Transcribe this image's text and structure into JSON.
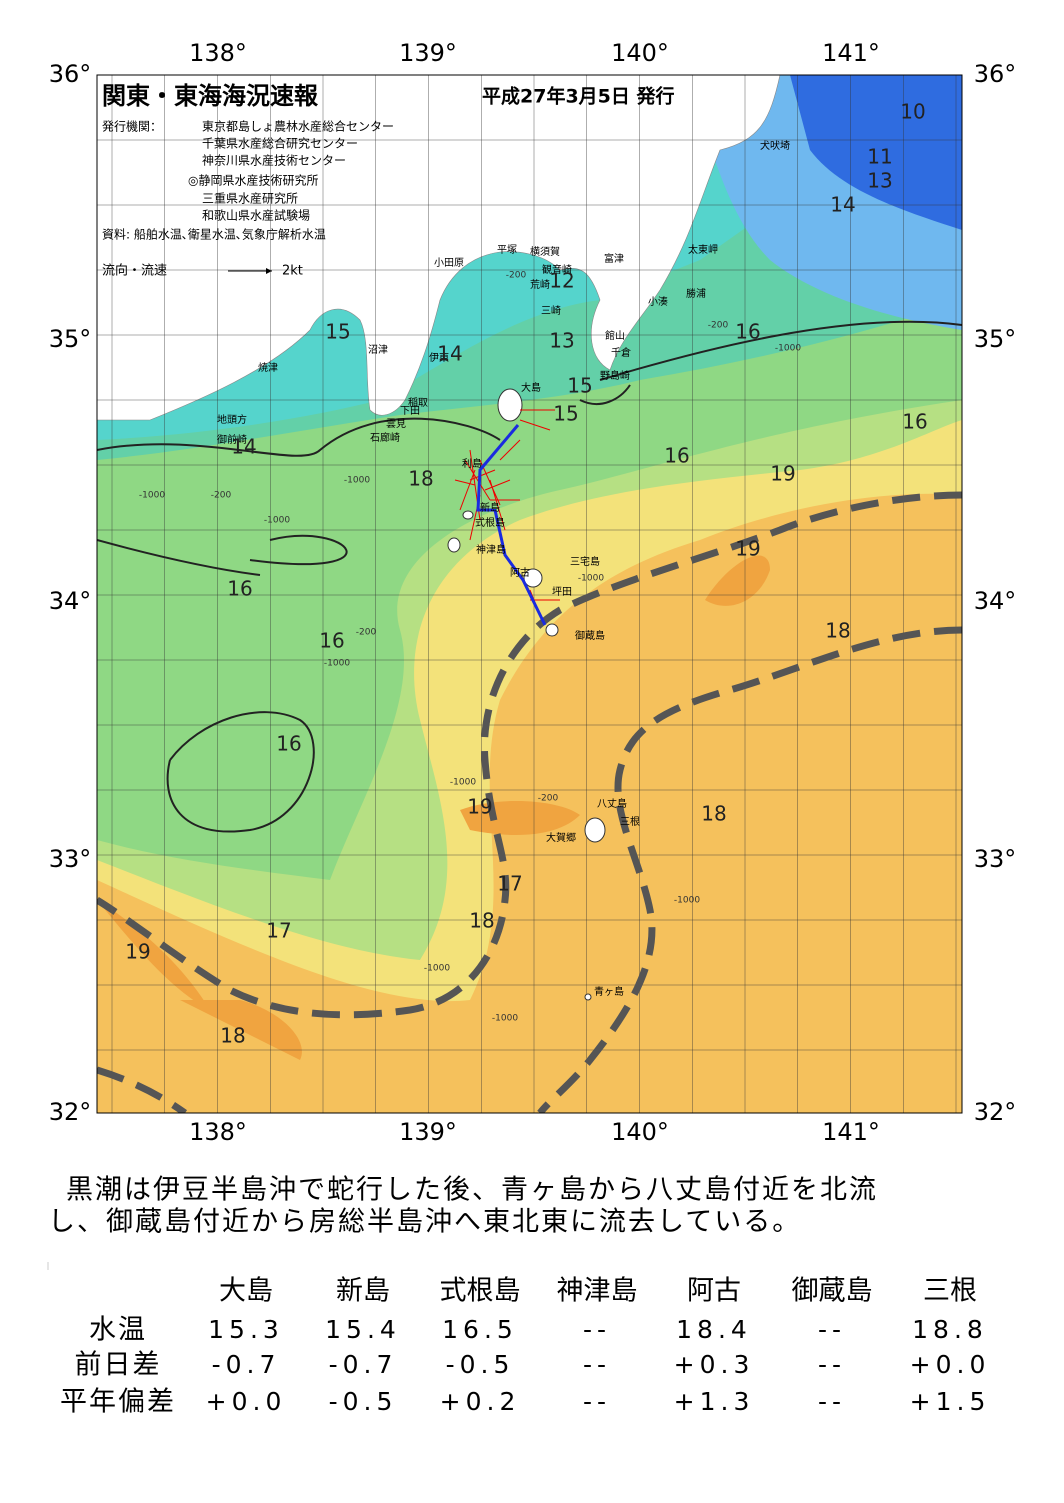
{
  "header": {
    "title": "関東・東海海況速報",
    "date": "平成27年3月5日 発行"
  },
  "issuers": {
    "label": "発行機関：",
    "list": [
      "東京都島しょ農林水産総合センター",
      "千葉県水産総合研究センター",
      "神奈川県水産技術センター",
      "◎静岡県水産技術研究所",
      "三重県水産研究所",
      "和歌山県水産試験場"
    ]
  },
  "source": "資料: 船舶水温､衛星水温､気象庁解析水温",
  "legend": {
    "label": "流向・流速",
    "scale": "2kt"
  },
  "axes": {
    "lat": [
      "36°",
      "35°",
      "34°",
      "33°",
      "32°"
    ],
    "lon": [
      "138°",
      "139°",
      "140°",
      "141°"
    ]
  },
  "places": [
    "犬吠埼",
    "太東岬",
    "勝浦",
    "小湊",
    "富津",
    "館山",
    "千倉",
    "野島崎",
    "横須賀",
    "観音崎",
    "荒崎",
    "三崎",
    "平塚",
    "小田原",
    "沼津",
    "伊東",
    "焼津",
    "稲取",
    "下田",
    "雲見",
    "石廊崎",
    "地頭方",
    "御前崎",
    "大島",
    "利島",
    "新島",
    "式根島",
    "神津島",
    "三宅島",
    "阿古",
    "坪田",
    "御蔵島",
    "八丈島",
    "三根",
    "大賀郷",
    "青ヶ島"
  ],
  "temperature_labels": [
    "10",
    "11",
    "13",
    "14",
    "15",
    "12",
    "13",
    "14",
    "15",
    "15",
    "14",
    "16",
    "16",
    "18",
    "16",
    "19",
    "16",
    "16",
    "18",
    "16",
    "19",
    "18",
    "17",
    "18",
    "17",
    "19",
    "19",
    "18"
  ],
  "depth_labels": [
    "-200",
    "-1000",
    "-1000",
    "-200",
    "-1000",
    "-200",
    "-1000",
    "-200",
    "-1000",
    "-1000",
    "-200",
    "-1000",
    "-1000",
    "-1000",
    "-1000"
  ],
  "summary": [
    "黒潮は伊豆半島沖で蛇行した後、青ヶ島から八丈島付近を北流",
    "し、御蔵島付近から房総半島沖へ東北東に流去している。"
  ],
  "table": {
    "columns": [
      "大島",
      "新島",
      "式根島",
      "神津島",
      "阿古",
      "御蔵島",
      "三根"
    ],
    "rows": [
      {
        "label": "水温",
        "cells": [
          "15.3",
          "15.4",
          "16.5",
          "--",
          "18.4",
          "--",
          "18.8"
        ]
      },
      {
        "label": "前日差",
        "cells": [
          "-0.7",
          "-0.7",
          "-0.5",
          "--",
          "+0.3",
          "--",
          "+0.0"
        ]
      },
      {
        "label": "平年偏差",
        "cells": [
          "+0.0",
          "-0.5",
          "+0.2",
          "--",
          "+1.3",
          "--",
          "+1.5"
        ]
      }
    ]
  }
}
